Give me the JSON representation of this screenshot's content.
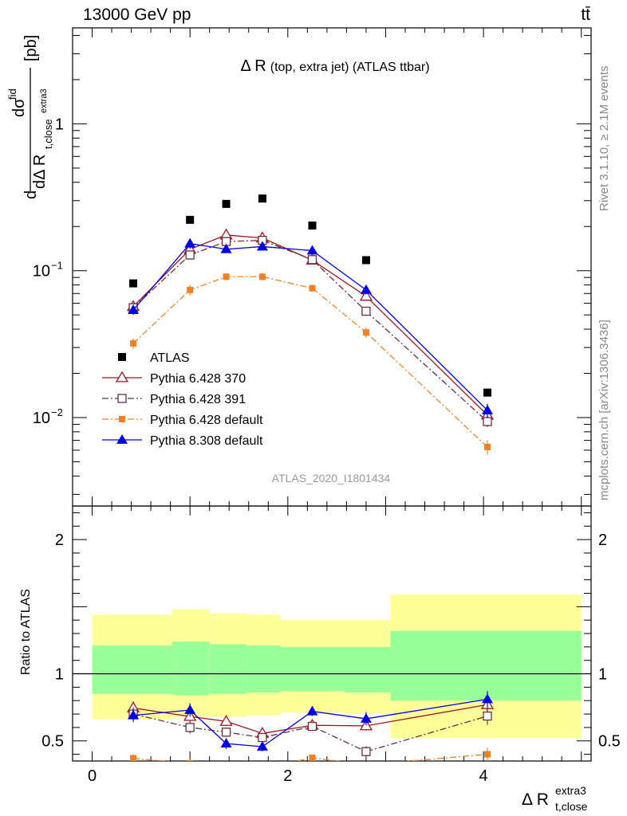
{
  "header": {
    "left": "13000 GeV pp",
    "right": "tt̄"
  },
  "side_text": {
    "rivet": "Rivet 3.1.10, ≥ 2.1M events",
    "mcplots": "mcplots.cern.ch [arXiv:1306.3436]"
  },
  "chart_data": [
    {
      "type": "scatter",
      "title": "Δ R (top, extra jet) (ATLAS ttbar)",
      "title_main": "Δ R",
      "title_sub": "(top, extra jet) (ATLAS ttbar)",
      "ylabel": "dσ^fid / dΔ R_t,close^extra3 [pb]",
      "ylabel_unit": "[pb]",
      "y_scale": "log",
      "ylim": [
        0.0025,
        4.5
      ],
      "xlim": [
        -0.2,
        5.1
      ],
      "y_ticks": [
        {
          "value": 0.01,
          "base": "10",
          "exp": "−2"
        },
        {
          "value": 0.1,
          "base": "10",
          "exp": "−1"
        },
        {
          "value": 1,
          "base": "1",
          "exp": ""
        }
      ],
      "watermark": "ATLAS_2020_I1801434",
      "legend_position": "lower-left",
      "x": [
        0.42,
        1.0,
        1.37,
        1.74,
        2.25,
        2.8,
        4.04
      ],
      "series": [
        {
          "name": "ATLAS",
          "color": "#000000",
          "marker": "square-filled",
          "line": "none",
          "values": [
            0.082,
            0.222,
            0.285,
            0.31,
            0.203,
            0.118,
            0.0148
          ]
        },
        {
          "name": "Pythia 6.428 370",
          "color": "#a0161d",
          "marker": "triangle-open",
          "line": "solid",
          "values": [
            0.057,
            0.14,
            0.175,
            0.167,
            0.118,
            0.067,
            0.0104
          ],
          "errors": [
            0.004,
            0.01,
            0.009,
            0.009,
            0.006,
            0.004,
            0.0008
          ]
        },
        {
          "name": "Pythia 6.428 391",
          "color": "#6b2d44",
          "marker": "square-open",
          "line": "dashdot",
          "values": [
            0.056,
            0.128,
            0.158,
            0.161,
            0.119,
            0.053,
            0.0094
          ],
          "errors": [
            0.004,
            0.009,
            0.008,
            0.008,
            0.006,
            0.003,
            0.0008
          ]
        },
        {
          "name": "Pythia 6.428 default",
          "color": "#f58024",
          "marker": "square-filled-small",
          "line": "dashdot",
          "values": [
            0.032,
            0.074,
            0.091,
            0.091,
            0.076,
            0.038,
            0.0063
          ],
          "errors": [
            0.0025,
            0.006,
            0.005,
            0.005,
            0.004,
            0.003,
            0.0007
          ]
        },
        {
          "name": "Pythia 8.308 default",
          "color": "#0000e6",
          "marker": "triangle-filled",
          "line": "solid",
          "values": [
            0.054,
            0.153,
            0.14,
            0.146,
            0.137,
            0.074,
            0.0112
          ],
          "errors": [
            0.004,
            0.012,
            0.008,
            0.008,
            0.007,
            0.005,
            0.0012
          ]
        }
      ]
    },
    {
      "type": "scatter",
      "ylabel": "Ratio to ATLAS",
      "xlabel": "Δ R_t,close^extra3",
      "xlabel_main": "Δ R",
      "xlabel_sup": "extra3",
      "xlabel_sub": "t,close",
      "ylim": [
        0.35,
        2.25
      ],
      "xlim": [
        -0.2,
        5.1
      ],
      "y_ticks": [
        0.5,
        1,
        2
      ],
      "x_ticks": [
        0,
        2,
        4
      ],
      "reference_line": 1,
      "bands": {
        "bins": [
          [
            0,
            0.82
          ],
          [
            0.82,
            1.2
          ],
          [
            1.2,
            1.58
          ],
          [
            1.58,
            1.92
          ],
          [
            1.92,
            2.58
          ],
          [
            2.58,
            3.05
          ],
          [
            3.05,
            5.0
          ]
        ],
        "yellow": [
          [
            0.66,
            1.44
          ],
          [
            0.68,
            1.48
          ],
          [
            0.68,
            1.45
          ],
          [
            0.69,
            1.44
          ],
          [
            0.71,
            1.4
          ],
          [
            0.7,
            1.4
          ],
          [
            0.52,
            1.59
          ]
        ],
        "green": [
          [
            0.85,
            1.21
          ],
          [
            0.84,
            1.24
          ],
          [
            0.85,
            1.22
          ],
          [
            0.86,
            1.21
          ],
          [
            0.87,
            1.2
          ],
          [
            0.86,
            1.2
          ],
          [
            0.8,
            1.32
          ]
        ]
      },
      "x": [
        0.42,
        1.0,
        1.37,
        1.74,
        2.25,
        2.8,
        4.04
      ],
      "series": [
        {
          "name": "Pythia 6.428 370",
          "color": "#a0161d",
          "values": [
            0.745,
            0.682,
            0.645,
            0.556,
            0.616,
            0.612,
            0.77
          ],
          "errors": [
            0.05,
            0.04,
            0.035,
            0.035,
            0.03,
            0.035,
            0.06
          ]
        },
        {
          "name": "Pythia 6.428 391",
          "color": "#6b2d44",
          "values": [
            0.7,
            0.6,
            0.565,
            0.525,
            0.608,
            0.42,
            0.685
          ],
          "errors": [
            0.05,
            0.045,
            0.035,
            0.035,
            0.03,
            0.04,
            0.065
          ]
        },
        {
          "name": "Pythia 6.428 default",
          "color": "#f58024",
          "values": [
            0.37,
            0.333,
            0.318,
            0.293,
            0.374,
            0.322,
            0.4
          ],
          "errors": [
            0.03,
            0.03,
            0.02,
            0.02,
            0.02,
            0.025,
            0.05
          ]
        },
        {
          "name": "Pythia 8.308 default",
          "color": "#0000e6",
          "values": [
            0.69,
            0.73,
            0.48,
            0.457,
            0.72,
            0.665,
            0.81
          ],
          "errors": [
            0.05,
            0.05,
            0.04,
            0.035,
            0.035,
            0.05,
            0.06
          ]
        }
      ]
    }
  ]
}
